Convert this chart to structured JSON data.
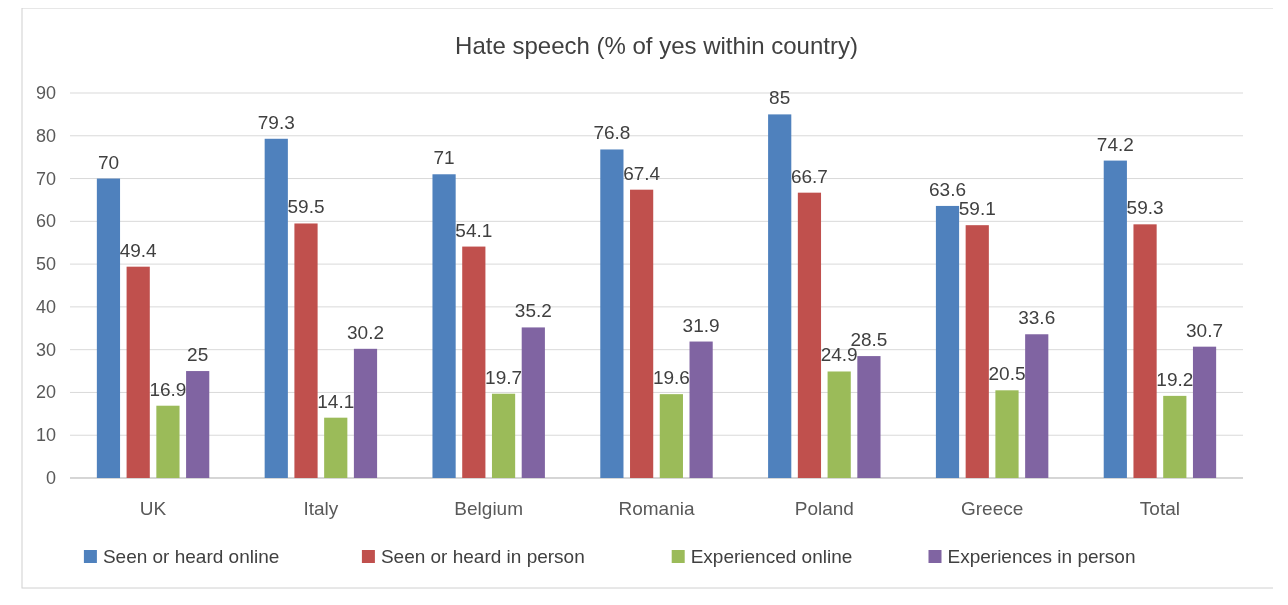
{
  "chart_data": {
    "type": "bar",
    "title": "Hate speech (% of yes within country)",
    "categories": [
      "UK",
      "Italy",
      "Belgium",
      "Romania",
      "Poland",
      "Greece",
      "Total"
    ],
    "series": [
      {
        "name": "Seen or heard online",
        "color": "#4f81bd",
        "values": [
          70,
          79.3,
          71,
          76.8,
          85,
          63.6,
          74.2
        ]
      },
      {
        "name": "Seen or heard in person",
        "color": "#c0504d",
        "values": [
          49.4,
          59.5,
          54.1,
          67.4,
          66.7,
          59.1,
          59.3
        ]
      },
      {
        "name": "Experienced online",
        "color": "#9bbb59",
        "values": [
          16.9,
          14.1,
          19.7,
          19.6,
          24.9,
          20.5,
          19.2
        ]
      },
      {
        "name": "Experiences in person",
        "color": "#8064a2",
        "values": [
          25,
          30.2,
          35.2,
          31.9,
          28.5,
          33.6,
          30.7
        ]
      }
    ],
    "ylim": [
      0,
      90
    ],
    "yticks": [
      0,
      10,
      20,
      30,
      40,
      50,
      60,
      70,
      80,
      90
    ],
    "grid": "y",
    "legend": "bottom",
    "data_labels": true
  }
}
